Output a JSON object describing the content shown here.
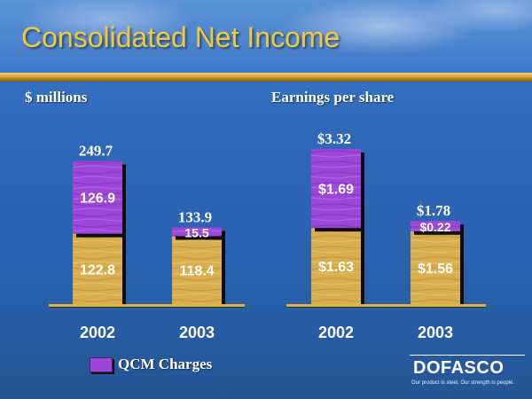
{
  "title": "Consolidated Net Income",
  "colors": {
    "title": "#f2c93a",
    "qcm": "#9c47d8",
    "base": "#d9ae4e",
    "axis": "#d8b44a",
    "label": "#ffffff"
  },
  "legend": {
    "label": "QCM Charges"
  },
  "logo": {
    "wordmark": "DOFASCO",
    "tagline": "Our product is steel. Our strength is people."
  },
  "chart_data": [
    {
      "type": "bar",
      "stacked": true,
      "title": "$ millions",
      "categories": [
        "2002",
        "2003"
      ],
      "series": [
        {
          "values": [
            122.8,
            118.4
          ],
          "labels": [
            "122.8",
            "118.4"
          ],
          "color": "#d9ae4e"
        },
        {
          "name": "QCM Charges",
          "values": [
            126.9,
            15.5
          ],
          "labels": [
            "126.9",
            "15.5"
          ],
          "color": "#9c47d8"
        }
      ],
      "totals": [
        249.7,
        133.9
      ],
      "total_labels": [
        "249.7",
        "133.9"
      ],
      "ylim": [
        0,
        280
      ]
    },
    {
      "type": "bar",
      "stacked": true,
      "title": "Earnings per share",
      "categories": [
        "2002",
        "2003"
      ],
      "series": [
        {
          "values": [
            1.63,
            1.56
          ],
          "labels": [
            "$1.63",
            "$1.56"
          ],
          "color": "#d9ae4e"
        },
        {
          "name": "QCM Charges",
          "values": [
            1.69,
            0.22
          ],
          "labels": [
            "$1.69",
            "$0.22"
          ],
          "color": "#9c47d8"
        }
      ],
      "totals": [
        3.32,
        1.78
      ],
      "total_labels": [
        "$3.32",
        "$1.78"
      ],
      "ylim": [
        0,
        3.72
      ]
    }
  ]
}
